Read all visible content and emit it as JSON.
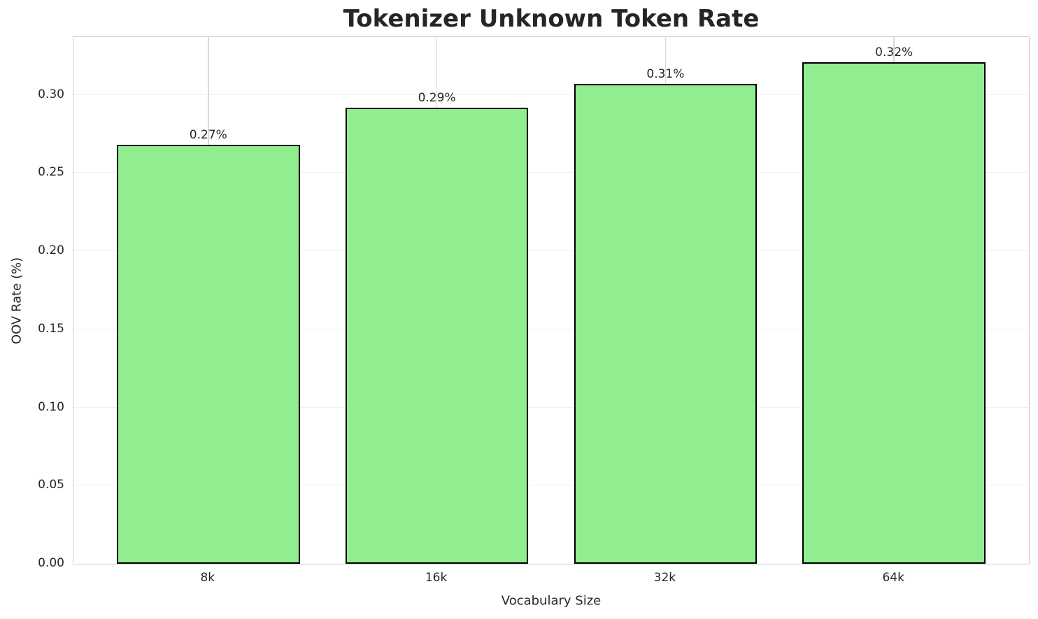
{
  "chart_data": {
    "type": "bar",
    "title": "Tokenizer Unknown Token Rate",
    "xlabel": "Vocabulary Size",
    "ylabel": "OOV Rate (%)",
    "categories": [
      "8k",
      "16k",
      "32k",
      "64k"
    ],
    "values": [
      0.268,
      0.292,
      0.307,
      0.321
    ],
    "bar_labels": [
      "0.27%",
      "0.29%",
      "0.31%",
      "0.32%"
    ],
    "yticks": [
      0.0,
      0.05,
      0.1,
      0.15,
      0.2,
      0.25,
      0.3
    ],
    "ytick_labels": [
      "0.00",
      "0.05",
      "0.10",
      "0.15",
      "0.20",
      "0.25",
      "0.30"
    ],
    "ylim": [
      0,
      0.337
    ],
    "grid": true,
    "legend": false,
    "bar_width_fraction": 0.8,
    "colors": {
      "bar_fill": "#90EE90",
      "bar_edge": "#000000",
      "grid_horizontal": "#f0f0f0",
      "grid_vertical": "#d9d9d9",
      "spine": "#cccccc",
      "text": "#262626"
    }
  }
}
